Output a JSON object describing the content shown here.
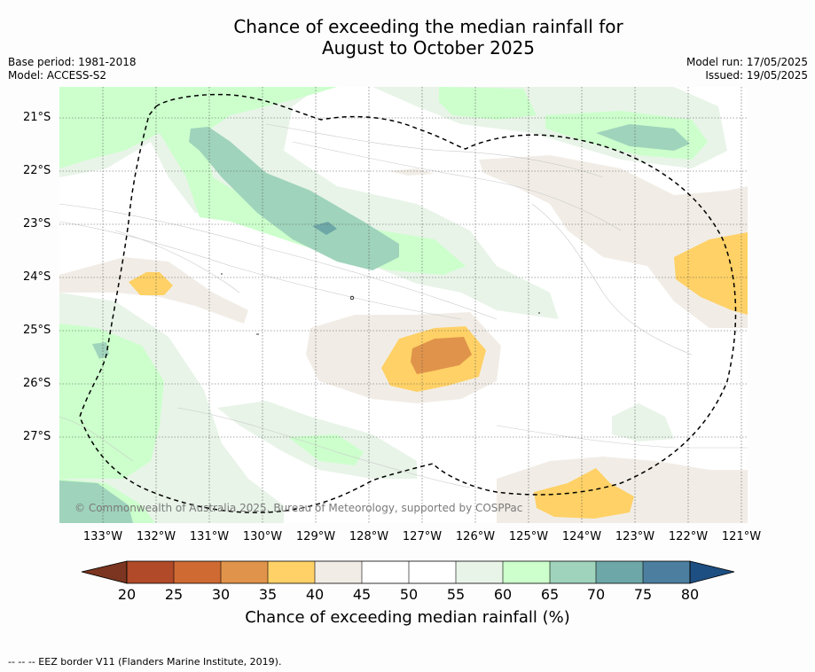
{
  "title_line1": "Chance of exceeding the median rainfall for",
  "title_line2": "August to October 2025",
  "meta": {
    "base_period": "Base period: 1981-2018",
    "model": "Model: ACCESS-S2",
    "model_run": "Model run: 17/05/2025",
    "issued": "Issued: 19/05/2025"
  },
  "lat_labels": [
    "21°S",
    "22°S",
    "23°S",
    "24°S",
    "25°S",
    "26°S",
    "27°S"
  ],
  "lon_labels": [
    "133°W",
    "132°W",
    "131°W",
    "130°W",
    "129°W",
    "128°W",
    "127°W",
    "126°W",
    "125°W",
    "124°W",
    "123°W",
    "122°W",
    "121°W"
  ],
  "copyright": "© Commonwealth of Australia 2025, Bureau of Meteorology, supported by COSPPac",
  "colorbar": {
    "ticks": [
      "20",
      "25",
      "30",
      "35",
      "40",
      "45",
      "50",
      "55",
      "60",
      "65",
      "70",
      "75",
      "80"
    ],
    "colors": [
      "#7b3520",
      "#b14a28",
      "#cf6a33",
      "#e0934a",
      "#ffd166",
      "#f1ede6",
      "#ffffff",
      "#ffffff",
      "#e8f4e8",
      "#ccffcc",
      "#9fd3bb",
      "#6ea7a7",
      "#4c7f9f",
      "#1e4f82"
    ],
    "label": "Chance of exceeding median rainfall (%)"
  },
  "footer": "--  --  -- EEZ border V11 (Flanders Marine Institute, 2019)."
}
